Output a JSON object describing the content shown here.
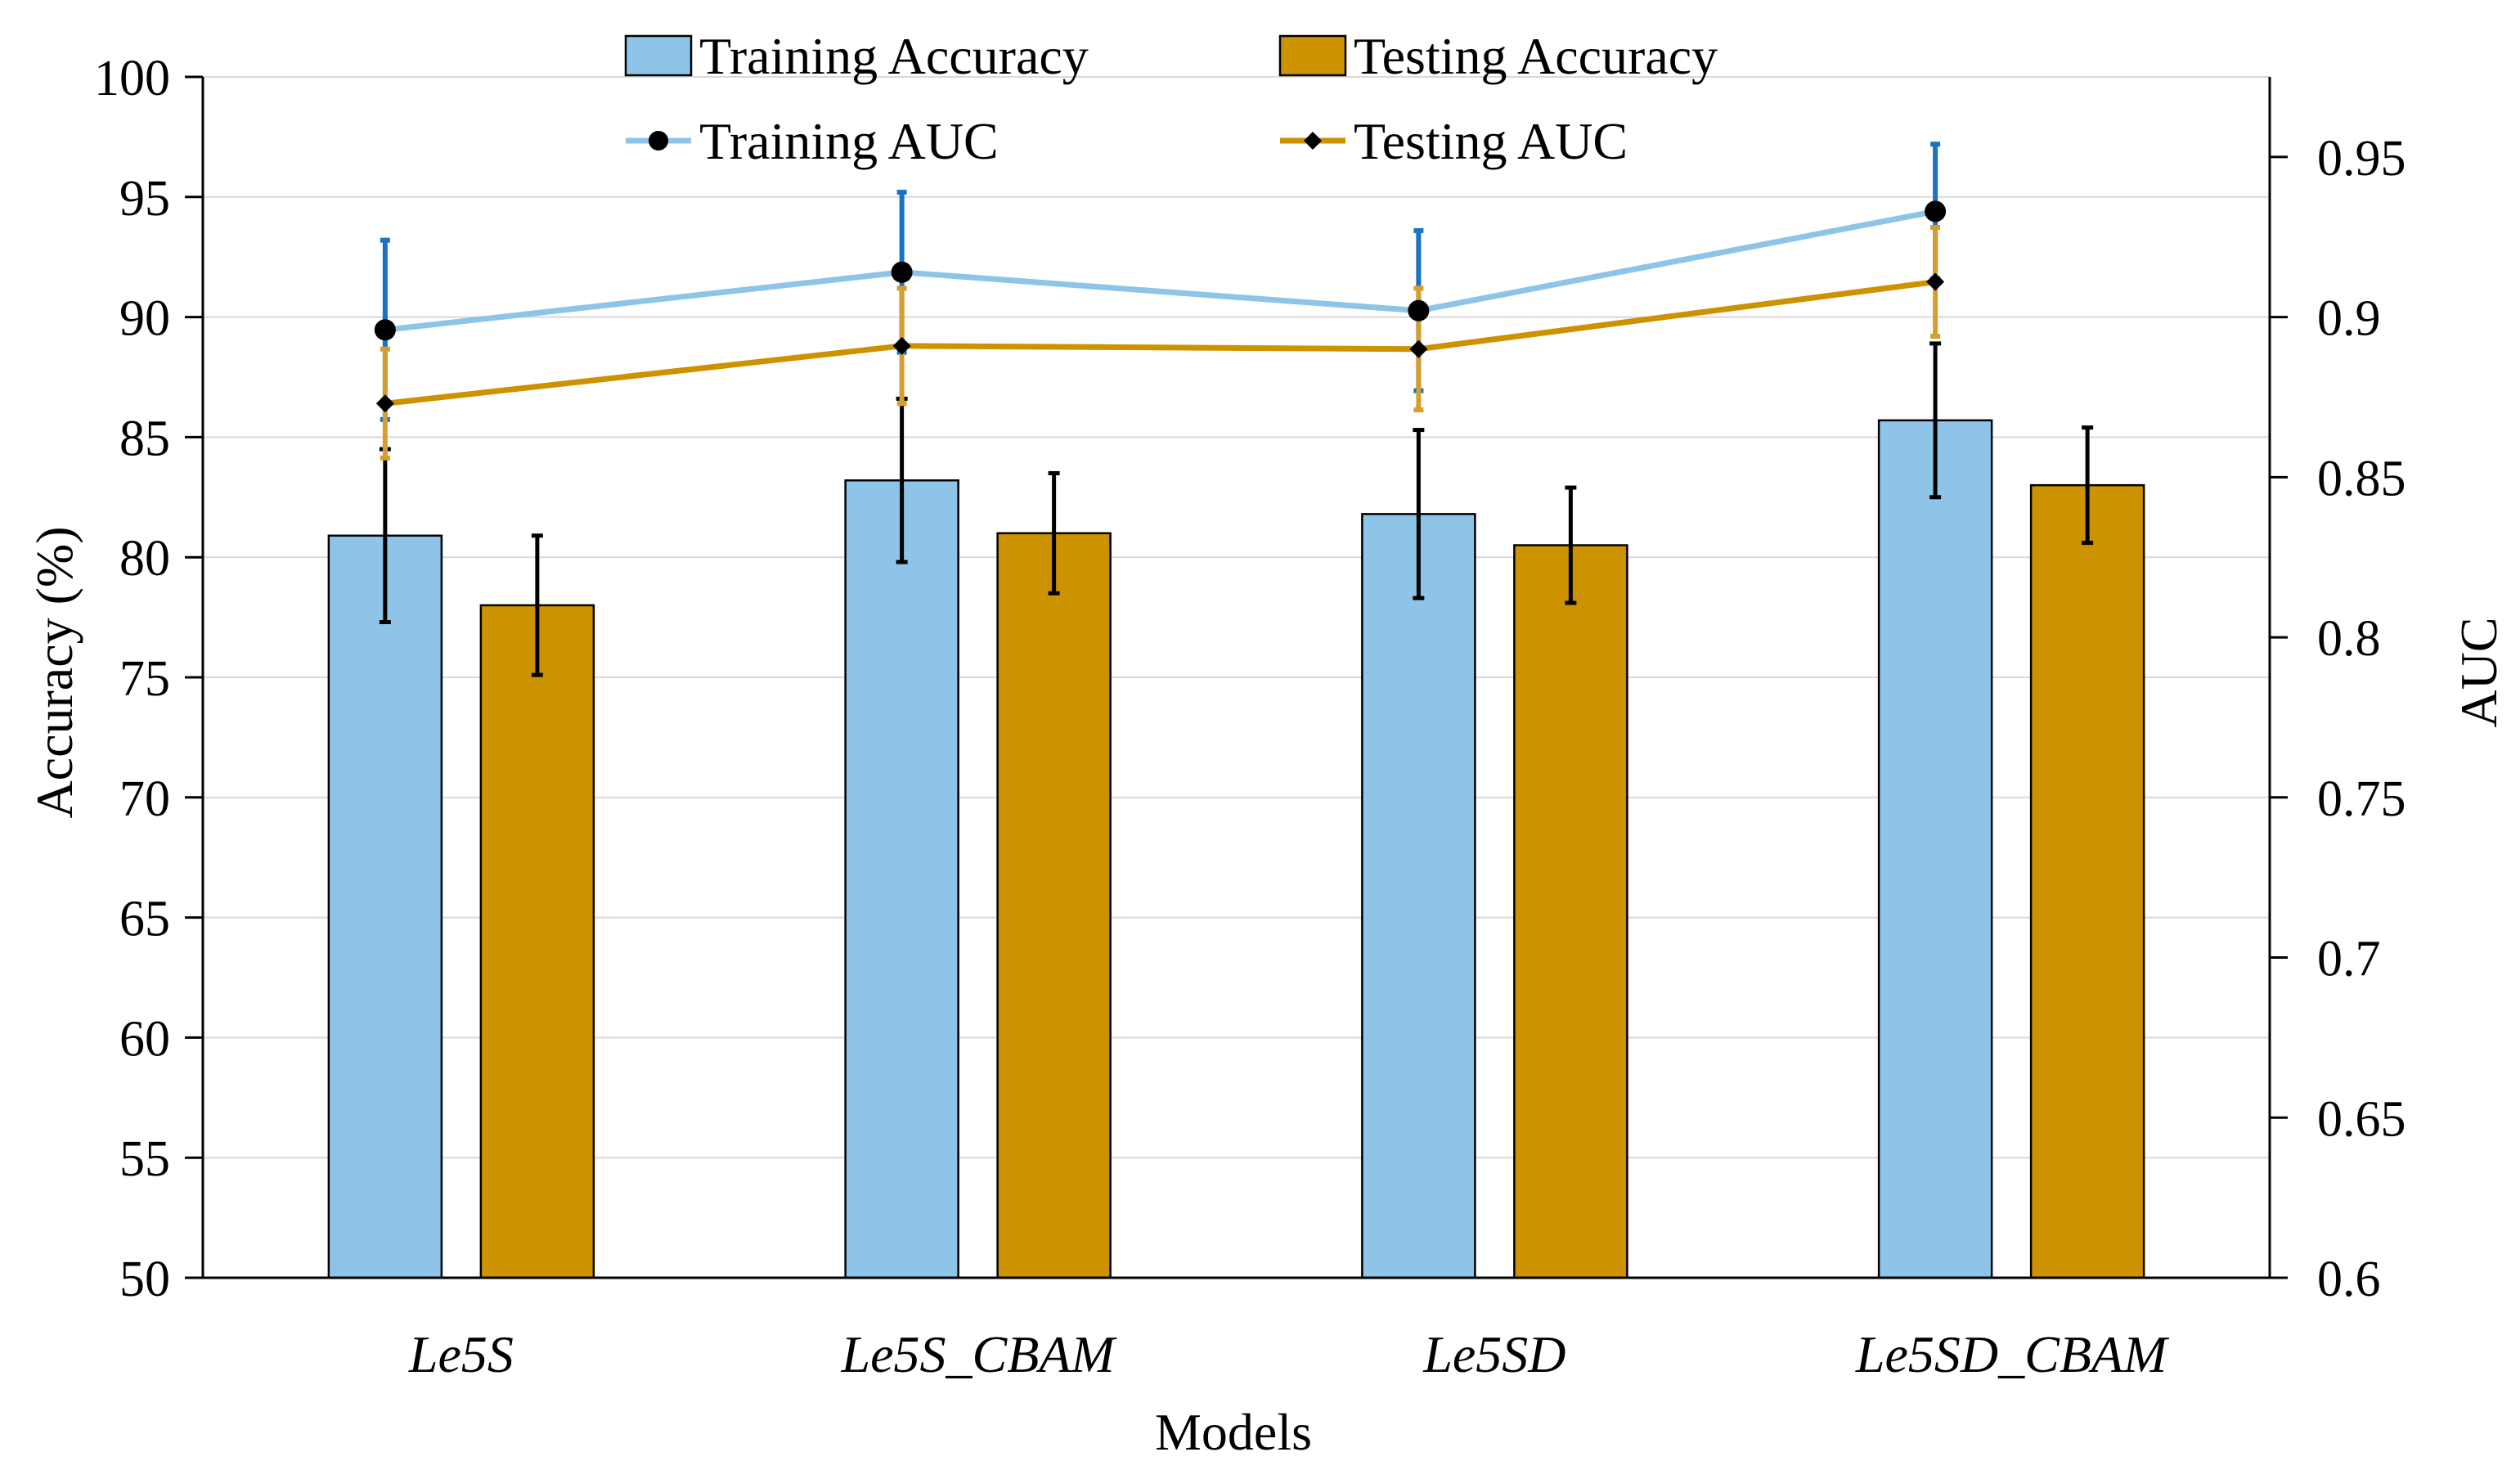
{
  "chart_data": {
    "type": "bar",
    "categories": [
      "Le5S",
      "Le5S_CBAM",
      "Le5SD",
      "Le5SD_CBAM"
    ],
    "xlabel": "Models",
    "ylabel": "Accuracy (%)",
    "ylim": [
      50,
      100
    ],
    "yticks": [
      "50",
      "55",
      "60",
      "65",
      "70",
      "75",
      "80",
      "85",
      "90",
      "95",
      "100"
    ],
    "y2label": "AUC",
    "y2lim": [
      0.6,
      0.975
    ],
    "y2ticks": [
      "0.6",
      "0.65",
      "0.7",
      "0.75",
      "0.8",
      "0.85",
      "0.9",
      "0.95"
    ],
    "grid": true,
    "legend_position": "top",
    "series": [
      {
        "name": "Training Accuracy",
        "kind": "bar",
        "axis": "left",
        "color": "#8ec4e8",
        "values": [
          80.9,
          83.2,
          81.8,
          85.7
        ],
        "errors": [
          3.6,
          3.4,
          3.5,
          3.2
        ]
      },
      {
        "name": "Testing Accuracy",
        "kind": "bar",
        "axis": "left",
        "color": "#cc9200",
        "values": [
          78.0,
          81.0,
          80.5,
          83.0
        ],
        "errors": [
          2.9,
          2.5,
          2.4,
          2.4
        ]
      },
      {
        "name": "Training AUC",
        "kind": "line",
        "axis": "right",
        "color": "#8ec4e8",
        "marker": "circle",
        "error_color": "#1a72c0",
        "values": [
          0.896,
          0.914,
          0.902,
          0.933
        ],
        "errors": [
          0.028,
          0.025,
          0.025,
          0.021
        ]
      },
      {
        "name": "Testing  AUC",
        "kind": "line",
        "axis": "right",
        "color": "#cc9200",
        "marker": "diamond",
        "error_color": "#d69e2e",
        "values": [
          0.873,
          0.891,
          0.89,
          0.911
        ],
        "errors": [
          0.017,
          0.018,
          0.019,
          0.017
        ]
      }
    ]
  }
}
